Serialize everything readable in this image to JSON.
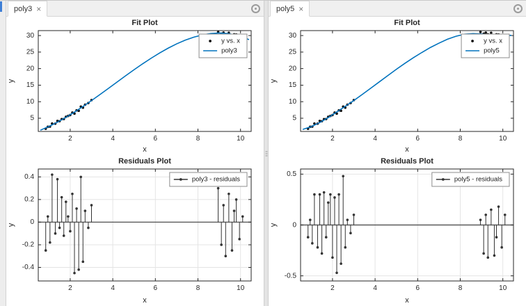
{
  "window": {
    "left_accent_color": "#3f7fd6"
  },
  "colors": {
    "curve": "#0072BD",
    "points": "#111111",
    "residuals": "#333333",
    "axis": "#262626",
    "grid": "#e4e4e4",
    "zero_line": "#595959",
    "legend_border": "#8c8c8c",
    "legend_text": "#1a1a1a"
  },
  "panels": [
    {
      "tab": {
        "label": "poly3",
        "close_glyph": "×"
      }
    },
    {
      "tab": {
        "label": "poly5",
        "close_glyph": "×"
      }
    }
  ],
  "chart_data": [
    {
      "type": "scatter+line",
      "title": "Fit Plot",
      "xlabel": "x",
      "ylabel": "y",
      "xlim": [
        0.5,
        10.5
      ],
      "ylim": [
        1,
        31.5
      ],
      "xticks": [
        2,
        4,
        6,
        8,
        10
      ],
      "yticks": [
        5,
        10,
        15,
        20,
        25,
        30
      ],
      "grid": false,
      "zero_line": false,
      "legend_position": "top-right",
      "legend": [
        {
          "label": "y vs. x",
          "marker": "dot"
        },
        {
          "label": "poly3",
          "marker": "line"
        }
      ],
      "series": [
        {
          "name": "y vs. x",
          "type": "scatter",
          "color": "#111111",
          "x": [
            0.85,
            0.95,
            1.05,
            1.15,
            1.3,
            1.4,
            1.5,
            1.6,
            1.7,
            1.8,
            1.9,
            2.0,
            2.1,
            2.2,
            2.3,
            2.4,
            2.5,
            2.6,
            2.7,
            2.85,
            3.0,
            8.95,
            9.1,
            9.2,
            9.3,
            9.45,
            9.6,
            9.7,
            9.8,
            9.95,
            10.1
          ],
          "y": [
            1.81,
            2.4,
            2.47,
            3.39,
            3.36,
            4.18,
            4.1,
            4.73,
            4.76,
            5.44,
            5.69,
            5.96,
            6.69,
            6.4,
            7.38,
            7.26,
            8.51,
            8.2,
            9.09,
            9.6,
            10.48,
            31.07,
            30.57,
            30.88,
            30.38,
            30.82,
            30.17,
            30.39,
            30.34,
            29.72,
            29.6
          ]
        },
        {
          "name": "poly3",
          "type": "line",
          "color": "#0072BD",
          "x": [
            0.6,
            1.0,
            1.4,
            1.8,
            2.2,
            2.6,
            3.0,
            3.4,
            3.8,
            4.2,
            4.6,
            5.0,
            5.4,
            5.8,
            6.2,
            6.6,
            7.0,
            7.4,
            7.8,
            8.2,
            8.6,
            9.0,
            9.4,
            9.8,
            10.2,
            10.4
          ],
          "y": [
            1.38,
            2.5,
            3.8,
            5.26,
            6.85,
            8.55,
            10.33,
            12.17,
            14.05,
            15.94,
            17.82,
            19.67,
            21.45,
            23.14,
            24.73,
            26.19,
            27.49,
            28.61,
            29.51,
            30.19,
            30.61,
            30.77,
            30.62,
            30.14,
            29.33,
            28.75
          ]
        }
      ]
    },
    {
      "type": "stem",
      "title": "Residuals Plot",
      "xlabel": "x",
      "ylabel": "y",
      "xlim": [
        0.5,
        10.5
      ],
      "ylim": [
        -0.52,
        0.47
      ],
      "xticks": [
        2,
        4,
        6,
        8,
        10
      ],
      "yticks": [
        -0.4,
        -0.2,
        0,
        0.2,
        0.4
      ],
      "grid": true,
      "zero_line": true,
      "legend_position": "top-right",
      "legend": [
        {
          "label": "poly3 - residuals",
          "marker": "line-dot"
        }
      ],
      "series": [
        {
          "name": "poly3 - residuals",
          "type": "stem",
          "color": "#333333",
          "x": [
            0.85,
            0.95,
            1.05,
            1.15,
            1.3,
            1.4,
            1.5,
            1.6,
            1.7,
            1.8,
            1.9,
            2.0,
            2.1,
            2.2,
            2.3,
            2.4,
            2.5,
            2.6,
            2.7,
            2.85,
            3.0,
            8.95,
            9.1,
            9.2,
            9.3,
            9.45,
            9.6,
            9.7,
            9.8,
            9.95,
            10.1
          ],
          "y": [
            -0.25,
            0.05,
            -0.18,
            0.42,
            -0.1,
            0.38,
            -0.05,
            0.22,
            -0.12,
            0.18,
            0.05,
            -0.08,
            0.25,
            -0.45,
            0.12,
            -0.42,
            0.4,
            -0.35,
            0.1,
            -0.05,
            0.15,
            0.3,
            -0.2,
            0.15,
            -0.3,
            0.25,
            -0.25,
            0.1,
            0.2,
            -0.15,
            0.05
          ]
        }
      ]
    },
    {
      "type": "scatter+line",
      "title": "Fit Plot",
      "xlabel": "x",
      "ylabel": "y",
      "xlim": [
        0.5,
        10.5
      ],
      "ylim": [
        1,
        31.5
      ],
      "xticks": [
        2,
        4,
        6,
        8,
        10
      ],
      "yticks": [
        5,
        10,
        15,
        20,
        25,
        30
      ],
      "grid": false,
      "zero_line": false,
      "legend_position": "top-right",
      "legend": [
        {
          "label": "y vs. x",
          "marker": "dot"
        },
        {
          "label": "poly5",
          "marker": "line"
        }
      ],
      "series": [
        {
          "name": "y vs. x",
          "type": "scatter",
          "color": "#111111",
          "x": [
            0.85,
            0.95,
            1.05,
            1.15,
            1.3,
            1.4,
            1.5,
            1.6,
            1.7,
            1.8,
            1.9,
            2.0,
            2.1,
            2.2,
            2.3,
            2.4,
            2.5,
            2.6,
            2.7,
            2.85,
            3.0,
            8.95,
            9.1,
            9.2,
            9.3,
            9.45,
            9.6,
            9.7,
            9.8,
            9.95,
            10.1
          ],
          "y": [
            1.81,
            2.4,
            2.47,
            3.39,
            3.36,
            4.18,
            4.1,
            4.73,
            4.76,
            5.44,
            5.69,
            5.96,
            6.69,
            6.4,
            7.38,
            7.26,
            8.51,
            8.2,
            9.09,
            9.6,
            10.48,
            31.07,
            30.57,
            30.88,
            30.38,
            30.82,
            30.17,
            30.39,
            30.34,
            29.72,
            29.6
          ]
        },
        {
          "name": "poly5",
          "type": "line",
          "color": "#0072BD",
          "x": [
            0.6,
            1.0,
            1.4,
            1.8,
            2.2,
            2.6,
            3.0,
            3.4,
            3.8,
            4.2,
            4.6,
            5.0,
            5.4,
            5.8,
            6.2,
            6.6,
            7.0,
            7.4,
            7.8,
            8.2,
            8.6,
            9.0,
            9.4,
            9.8,
            10.2,
            10.4
          ],
          "y": [
            1.6,
            2.45,
            3.7,
            5.2,
            6.9,
            8.6,
            10.35,
            12.2,
            14.1,
            16.0,
            17.9,
            19.8,
            21.6,
            23.3,
            24.9,
            26.4,
            27.7,
            28.9,
            29.8,
            30.4,
            30.6,
            30.5,
            30.2,
            29.9,
            29.9,
            30.1
          ]
        }
      ]
    },
    {
      "type": "stem",
      "title": "Residuals Plot",
      "xlabel": "x",
      "ylabel": "y",
      "xlim": [
        0.5,
        10.5
      ],
      "ylim": [
        -0.55,
        0.55
      ],
      "xticks": [
        2,
        4,
        6,
        8,
        10
      ],
      "yticks": [
        -0.5,
        0,
        0.5
      ],
      "grid": true,
      "zero_line": true,
      "legend_position": "top-right",
      "legend": [
        {
          "label": "poly5 - residuals",
          "marker": "line-dot"
        }
      ],
      "series": [
        {
          "name": "poly5 - residuals",
          "type": "stem",
          "color": "#333333",
          "x": [
            0.85,
            0.95,
            1.05,
            1.15,
            1.3,
            1.4,
            1.5,
            1.6,
            1.7,
            1.8,
            1.9,
            2.0,
            2.1,
            2.2,
            2.3,
            2.4,
            2.5,
            2.6,
            2.7,
            2.85,
            3.0,
            8.95,
            9.1,
            9.2,
            9.3,
            9.45,
            9.6,
            9.7,
            9.8,
            9.95,
            10.1
          ],
          "y": [
            -0.12,
            0.05,
            -0.18,
            0.3,
            -0.22,
            0.3,
            -0.28,
            0.32,
            -0.12,
            0.22,
            0.3,
            -0.32,
            0.27,
            -0.47,
            0.3,
            -0.38,
            0.48,
            -0.22,
            0.05,
            -0.08,
            0.1,
            0.05,
            -0.28,
            0.1,
            -0.32,
            0.15,
            -0.3,
            -0.12,
            0.18,
            -0.22,
            0.1
          ]
        }
      ]
    }
  ]
}
